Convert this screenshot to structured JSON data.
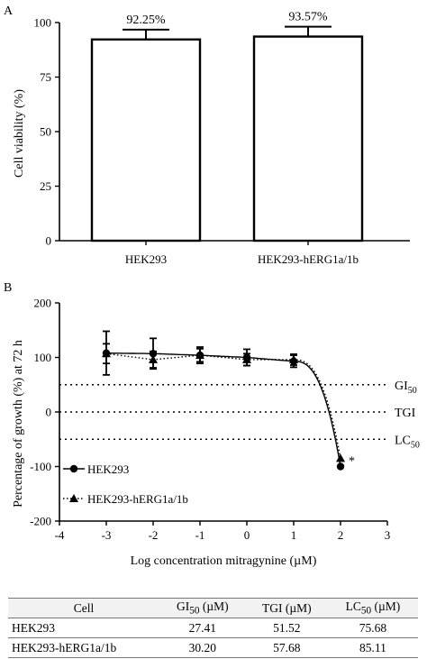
{
  "chart_data": [
    {
      "panel": "A",
      "type": "bar",
      "categories": [
        "HEK293",
        "HEK293-hERG1a/1b"
      ],
      "values": [
        92.25,
        93.57
      ],
      "errors": [
        4.5,
        4.5
      ],
      "data_labels": [
        "92.25%",
        "93.57%"
      ],
      "ylabel": "Cell viability (%)",
      "xlabel": "",
      "ylim": [
        0,
        100
      ],
      "yticks": [
        "0",
        "25",
        "50",
        "75",
        "100"
      ],
      "grid": false,
      "bar_color": "#ffffff"
    },
    {
      "panel": "B",
      "type": "scatter",
      "ylabel": "Percentage of growth (%) at 72 h",
      "xlabel": "Log concentration mitragynine (µM)",
      "xlim": [
        -4,
        3
      ],
      "ylim": [
        -200,
        200
      ],
      "xticks": [
        "-4",
        "-3",
        "-2",
        "-1",
        "0",
        "1",
        "2",
        "3"
      ],
      "yticks": [
        "-200",
        "-100",
        "0",
        "100",
        "200"
      ],
      "grid": false,
      "legend_position": "bottom-left",
      "series": [
        {
          "name": "HEK293",
          "marker": "circle",
          "line": "solid",
          "x": [
            -3,
            -2,
            -1,
            0,
            1,
            2
          ],
          "y": [
            108,
            107,
            104,
            100,
            93,
            -100
          ],
          "err": [
            40,
            28,
            15,
            15,
            11,
            0
          ]
        },
        {
          "name": "HEK293-hERG1a/1b",
          "marker": "triangle",
          "line": "dotted",
          "x": [
            -3,
            -2,
            -1,
            0,
            1,
            2
          ],
          "y": [
            107,
            96,
            104,
            96,
            96,
            -85
          ],
          "err": [
            18,
            15,
            12,
            11,
            10,
            0
          ]
        }
      ],
      "reference_lines": [
        {
          "label_main": "GI",
          "label_sub": "50",
          "y": 50
        },
        {
          "label_main": "TGI",
          "label_sub": "",
          "y": 0
        },
        {
          "label_main": "LC",
          "label_sub": "50",
          "y": -50
        }
      ],
      "annotation": "*"
    }
  ],
  "table": {
    "headers": [
      "Cell",
      "GI50 (µM)",
      "TGI (µM)",
      "LC50 (µM)"
    ],
    "rows": [
      [
        "HEK293",
        "27.41",
        "51.52",
        "75.68"
      ],
      [
        "HEK293-hERG1a/1b",
        "30.20",
        "57.68",
        "85.11"
      ]
    ]
  }
}
